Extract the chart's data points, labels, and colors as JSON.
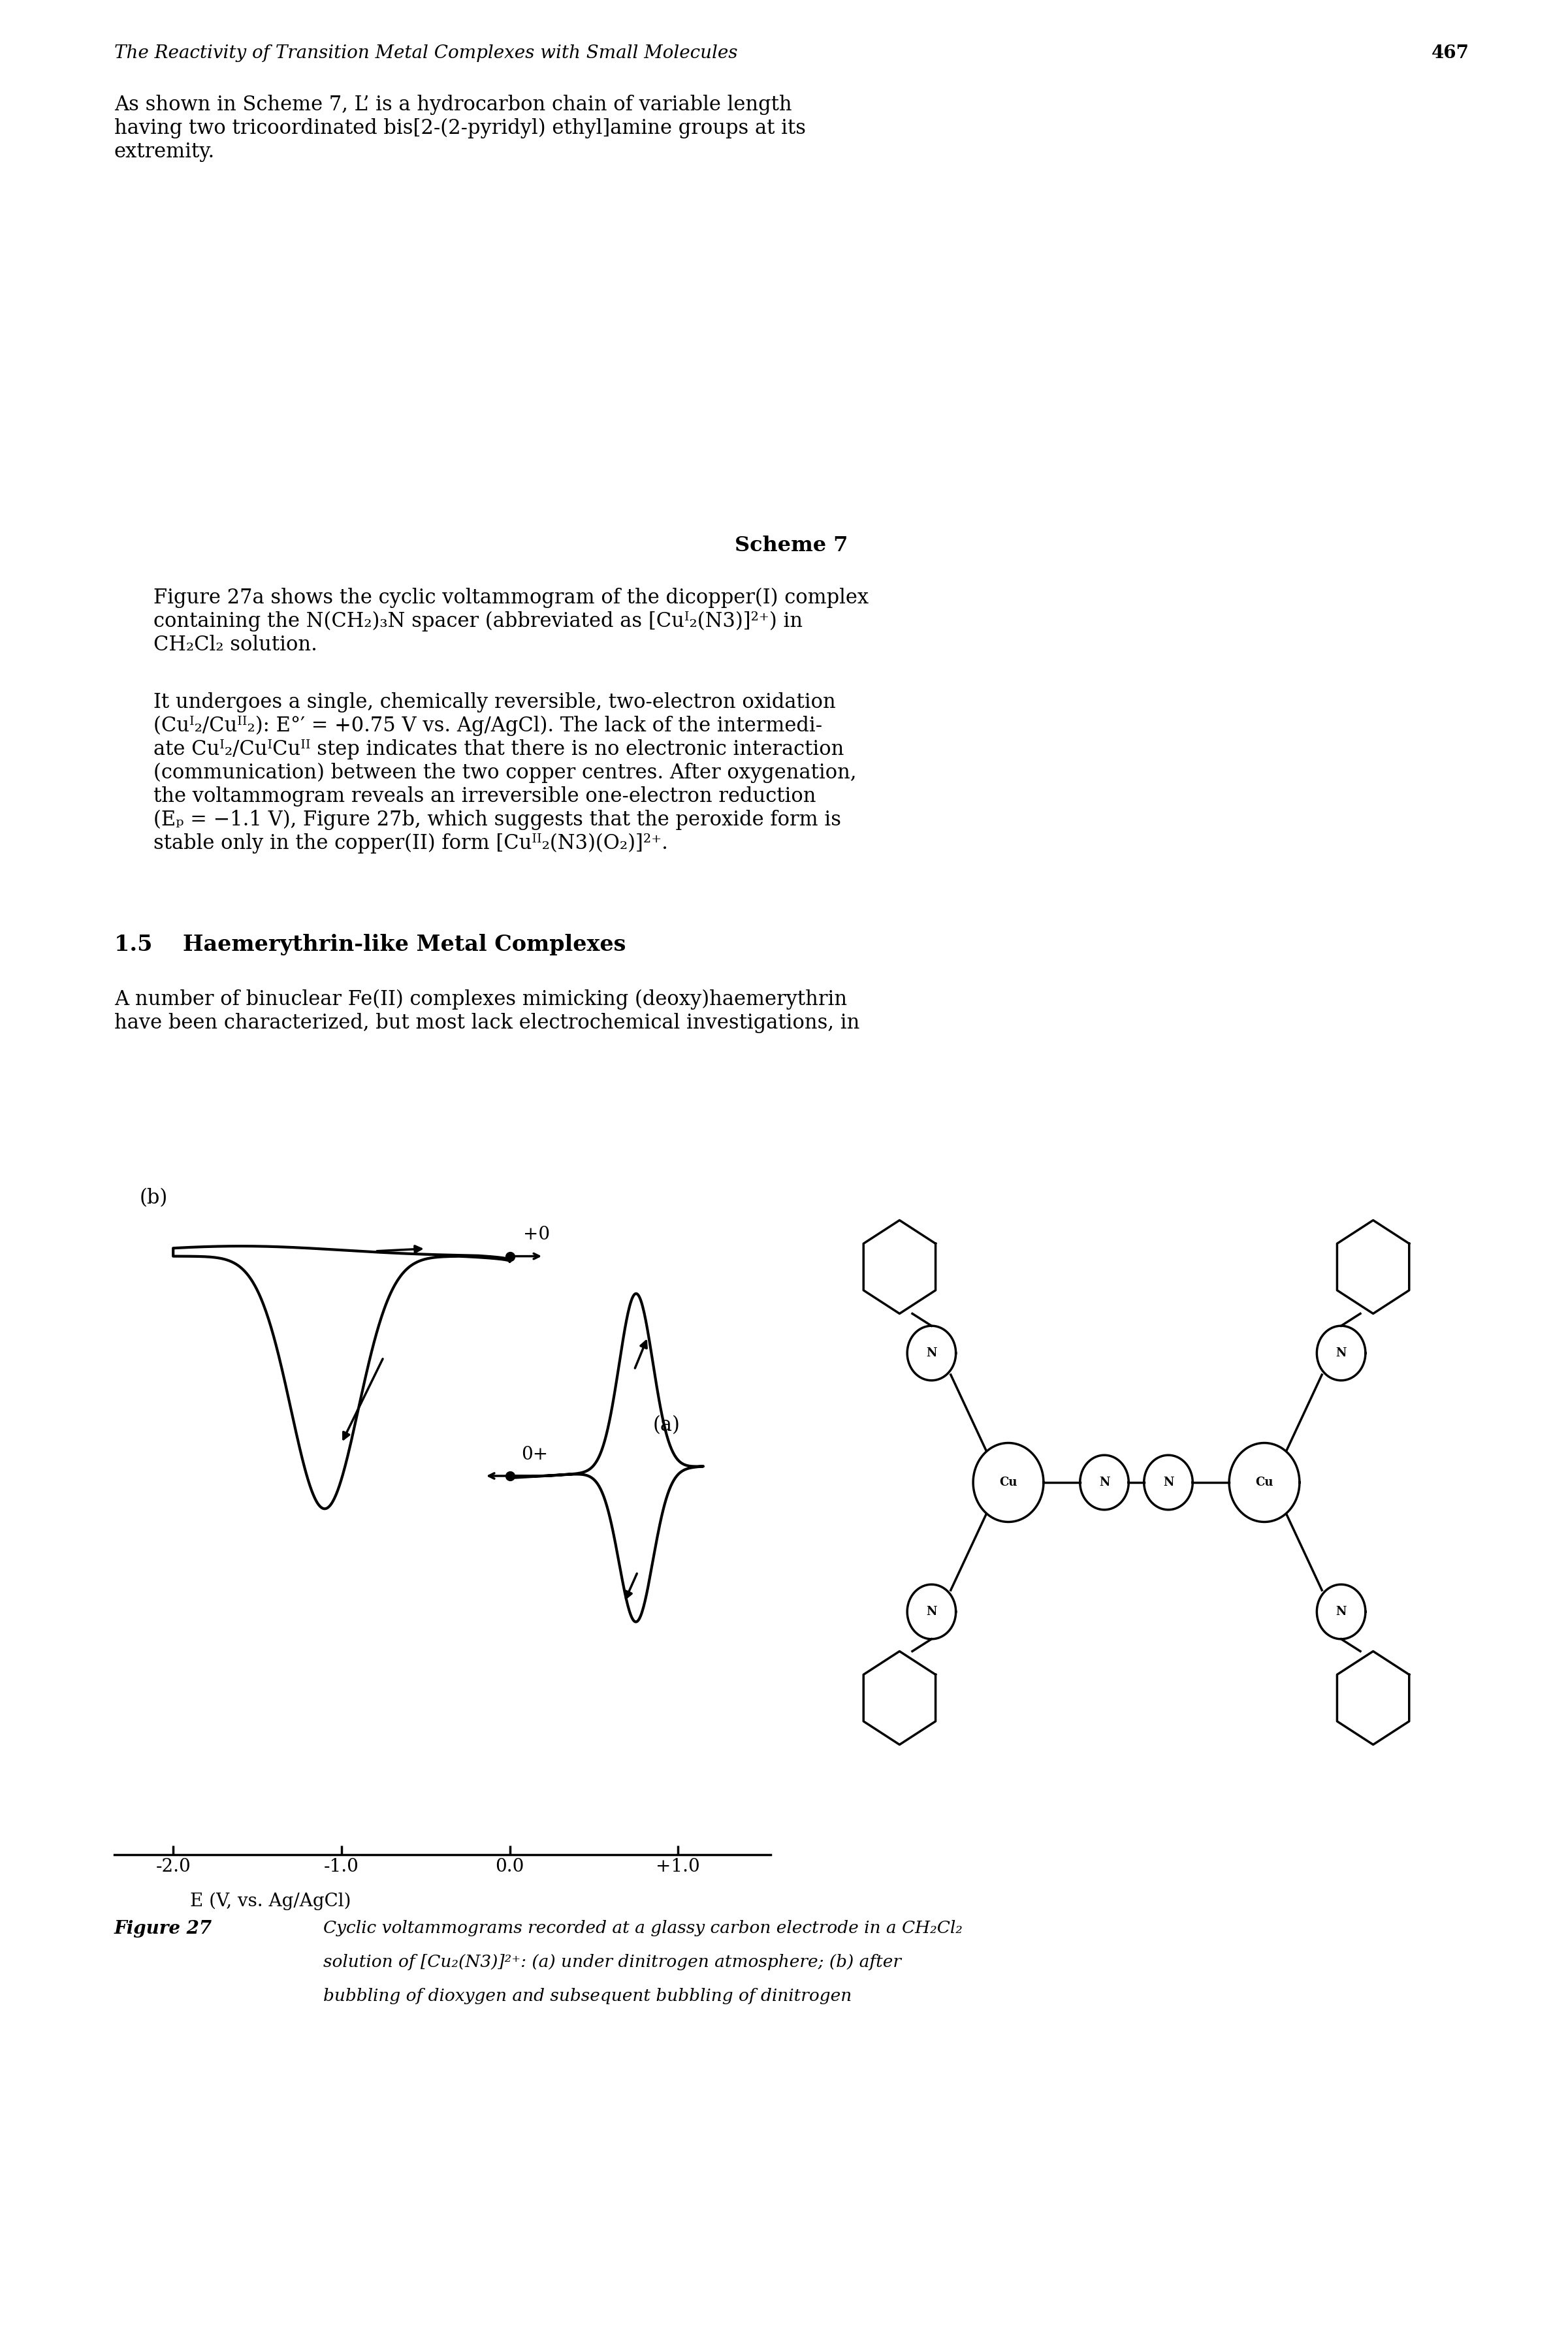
{
  "page_title": "The Reactivity of Transition Metal Complexes with Small Molecules",
  "page_number": "467",
  "bg_color": "#ffffff",
  "text_color": "#000000",
  "fig_width": 24.01,
  "fig_height": 36.0,
  "header_fontsize": 20,
  "body_fontsize": 22,
  "section_fontsize": 24,
  "caption_fontsize": 19,
  "scheme_fontsize": 22,
  "cv_xlim": [
    -2.35,
    1.55
  ],
  "cv_xticks": [
    -2.0,
    -1.0,
    0.0,
    1.0
  ],
  "cv_xticklabels": [
    "-2.0",
    "-1.0",
    "0.0",
    "+1.0"
  ],
  "cv_xlabel": "E (V, vs. Ag/AgCl)",
  "label_a": "(a)",
  "label_b": "(b)",
  "note_0a": "0+",
  "note_0b": "+0",
  "scheme7_label": "Scheme 7"
}
